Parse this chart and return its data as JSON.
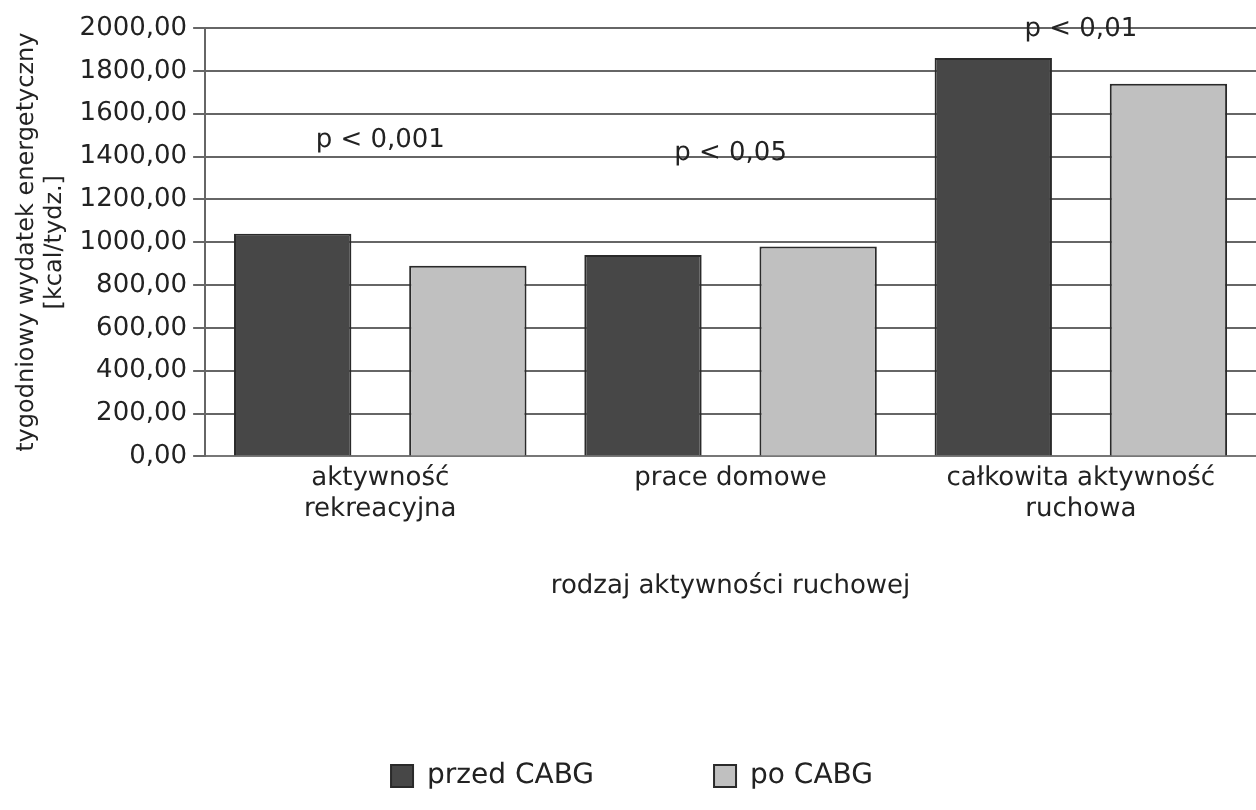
{
  "chart_data": {
    "type": "bar",
    "xlabel": "rodzaj aktywności ruchowej",
    "ylabel": "tygodniowy wydatek energetyczny [kcal/tydz.]",
    "categories": [
      "aktywność rekreacyjna",
      "prace domowe",
      "całkowita aktywność ruchowa"
    ],
    "series": [
      {
        "name": "przed CABG",
        "color": "#474747",
        "values": [
          1040,
          940,
          1860
        ]
      },
      {
        "name": "po CABG",
        "color": "#c0c0c0",
        "values": [
          890,
          980,
          1740
        ]
      }
    ],
    "ylim": [
      0,
      2000
    ],
    "yticks": [
      {
        "value": 0,
        "label": "0,00"
      },
      {
        "value": 200,
        "label": "200,00"
      },
      {
        "value": 400,
        "label": "400,00"
      },
      {
        "value": 600,
        "label": "600,00"
      },
      {
        "value": 800,
        "label": "800,00"
      },
      {
        "value": 1000,
        "label": "1000,00"
      },
      {
        "value": 1200,
        "label": "1200,00"
      },
      {
        "value": 1400,
        "label": "1400,00"
      },
      {
        "value": 1600,
        "label": "1600,00"
      },
      {
        "value": 1800,
        "label": "1800,00"
      },
      {
        "value": 2000,
        "label": "2000,00"
      }
    ],
    "annotations": [
      "p < 0,001",
      "p < 0,05",
      "p < 0,01"
    ],
    "grid": "y",
    "legend": "bottom"
  }
}
